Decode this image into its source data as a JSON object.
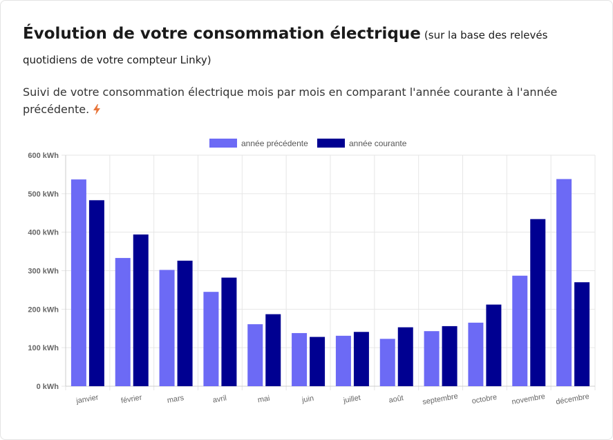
{
  "header": {
    "title": "Évolution de votre consommation électrique",
    "title_note": "(sur la base des relevés quotidiens de votre compteur Linky)",
    "description": "Suivi de votre consommation électrique mois par mois en comparant l'année courante à l'année précédente.",
    "icon": "lightning-bolt-icon"
  },
  "chart_data": {
    "type": "bar",
    "categories": [
      "janvier",
      "février",
      "mars",
      "avril",
      "mai",
      "juin",
      "juillet",
      "août",
      "septembre",
      "octobre",
      "novembre",
      "décembre"
    ],
    "series": [
      {
        "name": "année précédente",
        "color": "#6c6af5",
        "values": [
          537,
          333,
          302,
          245,
          161,
          138,
          131,
          123,
          143,
          165,
          287,
          538
        ]
      },
      {
        "name": "année courante",
        "color": "#000091",
        "values": [
          483,
          394,
          326,
          282,
          187,
          128,
          141,
          153,
          156,
          212,
          434,
          270
        ]
      }
    ],
    "ylim": [
      0,
      600
    ],
    "y_ticks": [
      "0 kWh",
      "100 kWh",
      "200 kWh",
      "300 kWh",
      "400 kWh",
      "500 kWh",
      "600 kWh"
    ],
    "y_tick_values": [
      0,
      100,
      200,
      300,
      400,
      500,
      600
    ],
    "grid": true,
    "legend_position": "top-center"
  }
}
